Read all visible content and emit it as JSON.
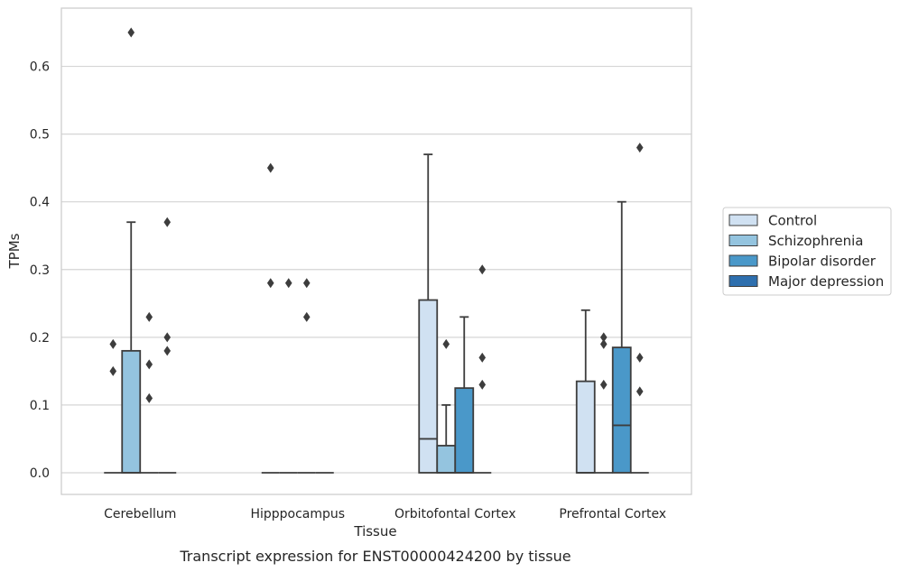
{
  "chart_data": {
    "type": "box",
    "caption": "Transcript expression for ENST00000424200 by tissue",
    "xlabel": "Tissue",
    "ylabel": "TPMs",
    "ylim": [
      -0.032,
      0.686
    ],
    "yticks": [
      "0.0",
      "0.1",
      "0.2",
      "0.3",
      "0.4",
      "0.5",
      "0.6"
    ],
    "grid": "horizontal",
    "legend_position": "right",
    "categories": [
      "Cerebellum",
      "Hipppocampus",
      "Orbitofontal Cortex",
      "Prefrontal Cortex"
    ],
    "series": [
      {
        "name": "Control",
        "color": "#d0e1f2",
        "boxes": [
          {
            "q1": 0,
            "median": 0,
            "q3": 0,
            "whisker_low": 0,
            "whisker_high": 0,
            "outliers": [
              0.15,
              0.19
            ]
          },
          {
            "q1": 0,
            "median": 0,
            "q3": 0,
            "whisker_low": 0,
            "whisker_high": 0,
            "outliers": [
              0.28,
              0.45
            ]
          },
          {
            "q1": 0,
            "median": 0.05,
            "q3": 0.255,
            "whisker_low": 0,
            "whisker_high": 0.47,
            "outliers": []
          },
          {
            "q1": 0,
            "median": 0,
            "q3": 0.135,
            "whisker_low": 0,
            "whisker_high": 0.24,
            "outliers": []
          }
        ]
      },
      {
        "name": "Schizophrenia",
        "color": "#94c4df",
        "boxes": [
          {
            "q1": 0,
            "median": 0,
            "q3": 0.18,
            "whisker_low": 0,
            "whisker_high": 0.37,
            "outliers": [
              0.65
            ]
          },
          {
            "q1": 0,
            "median": 0,
            "q3": 0,
            "whisker_low": 0,
            "whisker_high": 0,
            "outliers": [
              0.28
            ]
          },
          {
            "q1": 0,
            "median": 0,
            "q3": 0.04,
            "whisker_low": 0,
            "whisker_high": 0.1,
            "outliers": [
              0.19
            ]
          },
          {
            "q1": 0,
            "median": 0,
            "q3": 0,
            "whisker_low": 0,
            "whisker_high": 0,
            "outliers": [
              0.13,
              0.19,
              0.2
            ]
          }
        ]
      },
      {
        "name": "Bipolar disorder",
        "color": "#4a98c9",
        "boxes": [
          {
            "q1": 0,
            "median": 0,
            "q3": 0,
            "whisker_low": 0,
            "whisker_high": 0,
            "outliers": [
              0.11,
              0.16,
              0.23
            ]
          },
          {
            "q1": 0,
            "median": 0,
            "q3": 0,
            "whisker_low": 0,
            "whisker_high": 0,
            "outliers": [
              0.23,
              0.28
            ]
          },
          {
            "q1": 0,
            "median": 0,
            "q3": 0.125,
            "whisker_low": 0,
            "whisker_high": 0.23,
            "outliers": []
          },
          {
            "q1": 0,
            "median": 0.07,
            "q3": 0.185,
            "whisker_low": 0,
            "whisker_high": 0.4,
            "outliers": []
          }
        ]
      },
      {
        "name": "Major depression",
        "color": "#2e6fae",
        "boxes": [
          {
            "q1": 0,
            "median": 0,
            "q3": 0,
            "whisker_low": 0,
            "whisker_high": 0,
            "outliers": [
              0.18,
              0.2,
              0.37
            ]
          },
          {
            "q1": 0,
            "median": 0,
            "q3": 0,
            "whisker_low": 0,
            "whisker_high": 0,
            "outliers": []
          },
          {
            "q1": 0,
            "median": 0,
            "q3": 0,
            "whisker_low": 0,
            "whisker_high": 0,
            "outliers": [
              0.13,
              0.17,
              0.3
            ]
          },
          {
            "q1": 0,
            "median": 0,
            "q3": 0,
            "whisker_low": 0,
            "whisker_high": 0,
            "outliers": [
              0.12,
              0.17,
              0.48
            ]
          }
        ]
      }
    ]
  }
}
